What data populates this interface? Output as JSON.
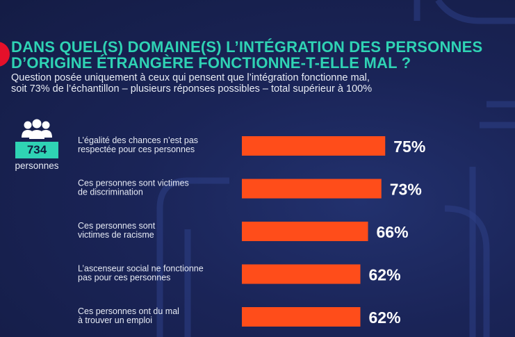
{
  "header": {
    "title_lines": [
      "DANS QUEL(S) DOMAINE(S) L’INTÉGRATION DES PERSONNES",
      "D’ORIGINE ÉTRANGÈRE FONCTIONNE-T-ELLE MAL ?"
    ],
    "subtitle_lines": [
      "Question posée uniquement à ceux qui pensent que l’intégration fonctionne mal,",
      "soit 73% de l’échantillon – plusieurs réponses possibles – total supérieur à 100%"
    ]
  },
  "sample": {
    "count": "734",
    "label": "personnes",
    "icon": "people-group-icon"
  },
  "colors": {
    "accent": "#2fd3b4",
    "bar": "#ff4d1a",
    "badge": "#e5102a"
  },
  "chart_data": {
    "type": "bar",
    "orientation": "horizontal",
    "categories": [
      [
        "L’égalité des chances n’est pas",
        "respectée pour ces personnes"
      ],
      [
        "Ces personnes sont victimes",
        "de discrimination"
      ],
      [
        "Ces personnes sont",
        "victimes de racisme"
      ],
      [
        "L’ascenseur social ne fonctionne",
        "pas pour ces personnes"
      ],
      [
        "Ces personnes ont du mal",
        "à trouver un emploi"
      ]
    ],
    "values": [
      75,
      73,
      66,
      62,
      62
    ],
    "value_labels": [
      "75%",
      "73%",
      "66%",
      "62%",
      "62%"
    ],
    "unit": "%",
    "xlim": [
      0,
      100
    ],
    "grid": false,
    "legend": "none"
  }
}
